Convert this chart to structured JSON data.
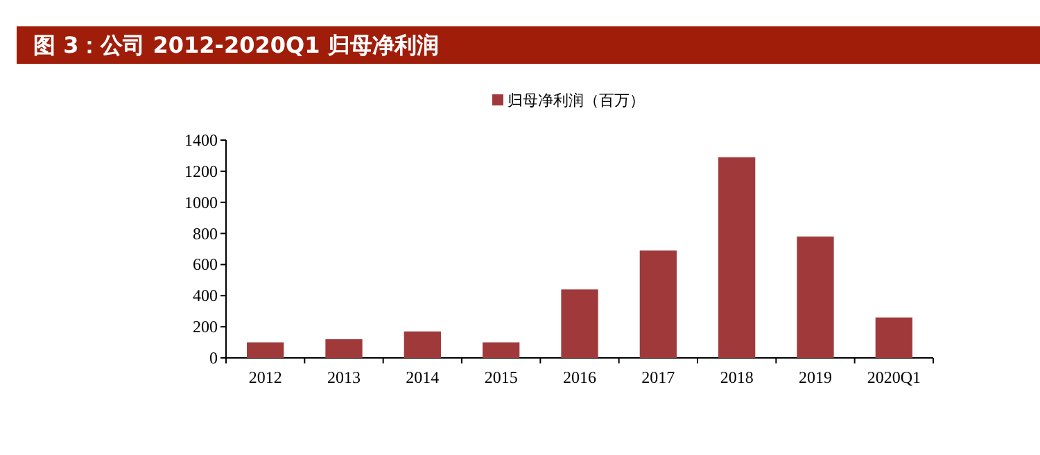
{
  "chart_data": {
    "type": "bar",
    "title": "图 3：公司 2012-2020Q1 归母净利润",
    "categories": [
      "2012",
      "2013",
      "2014",
      "2015",
      "2016",
      "2017",
      "2018",
      "2019",
      "2020Q1"
    ],
    "series": [
      {
        "name": "归母净利润（百万）",
        "color": "#a0393a",
        "values": [
          100,
          120,
          170,
          100,
          440,
          690,
          1290,
          780,
          260
        ]
      }
    ],
    "ylim": [
      0,
      1400
    ],
    "yticks": [
      0,
      200,
      400,
      600,
      800,
      1000,
      1200,
      1400
    ],
    "grid": false,
    "legend": "top"
  }
}
